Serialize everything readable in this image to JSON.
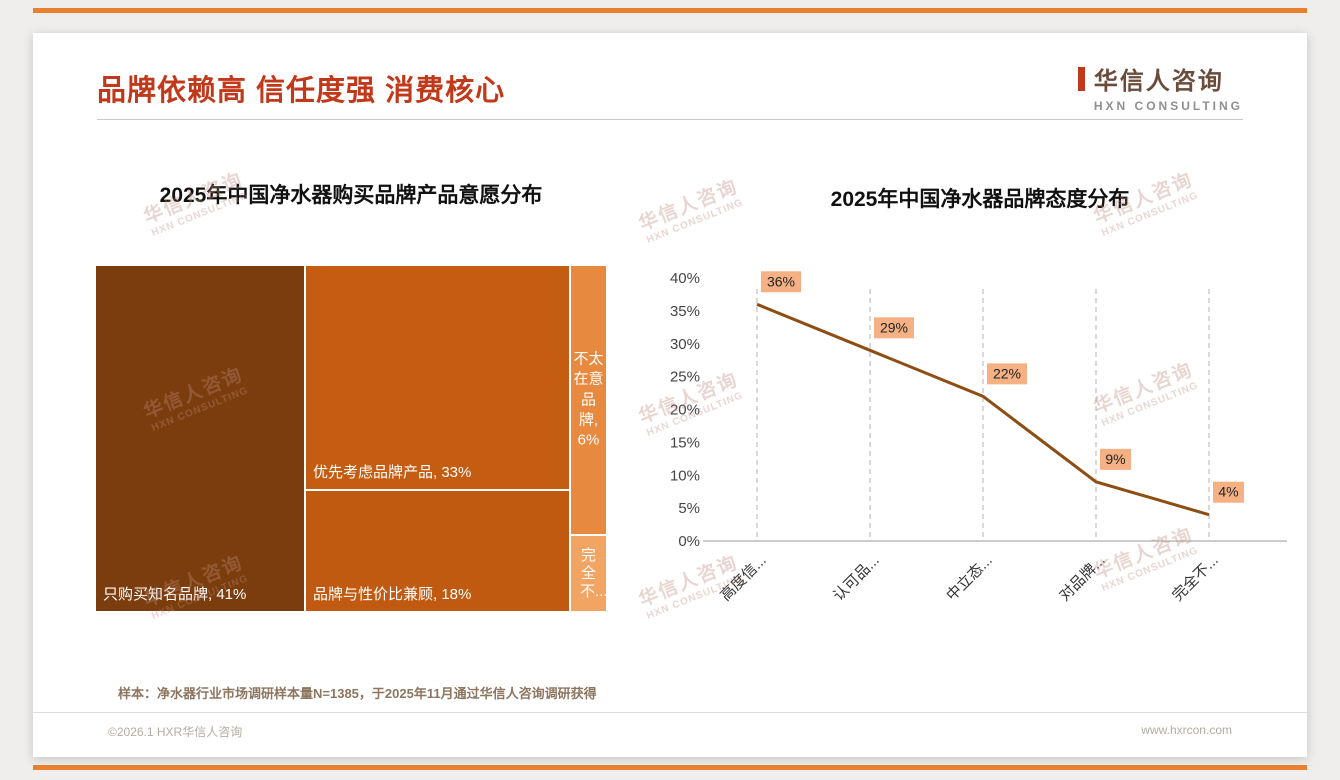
{
  "header": {
    "title": "品牌依赖高 信任度强 消费核心",
    "logo_name": "华信人咨询",
    "logo_subtitle": "HXN CONSULTING"
  },
  "watermark_text": "华信人咨询",
  "watermark_subtext": "HXN CONSULTING",
  "footnote": "样本：净水器行业市场调研样本量N=1385，于2025年11月通过华信人咨询调研获得",
  "footer": {
    "left": "©2026.1 HXR华信人咨询",
    "right": "www.hxrcon.com"
  },
  "chart_data": [
    {
      "type": "treemap",
      "title": "2025年中国净水器购买品牌产品意愿分布",
      "segments": [
        {
          "label": "只购买知名品牌",
          "value": 41,
          "display": "只购买知名品牌, 41%",
          "color": "#7c3d0e"
        },
        {
          "label": "优先考虑品牌产品",
          "value": 33,
          "display": "优先考虑品牌产品, 33%",
          "color": "#c45c12"
        },
        {
          "label": "品牌与性价比兼顾",
          "value": 18,
          "display": "品牌与性价比兼顾, 18%",
          "color": "#c05a10"
        },
        {
          "label": "不太在意品牌",
          "value": 6,
          "display": "不太在意品牌, 6%",
          "color": "#e78a3f"
        },
        {
          "label": "完全不...",
          "value": null,
          "display": "完全不...",
          "color": "#f2a463"
        }
      ]
    },
    {
      "type": "line",
      "title": "2025年中国净水器品牌态度分布",
      "categories": [
        "高度信...",
        "认可品...",
        "中立态...",
        "对品牌...",
        "完全不..."
      ],
      "values": [
        36,
        29,
        22,
        9,
        4
      ],
      "point_labels": [
        "36%",
        "29%",
        "22%",
        "9%",
        "4%"
      ],
      "ylim": [
        0,
        40
      ],
      "ytick_step": 5,
      "ytick_labels": [
        "0%",
        "5%",
        "10%",
        "15%",
        "20%",
        "25%",
        "30%",
        "35%",
        "40%"
      ],
      "grid": "dashed-vertical",
      "legend": "none",
      "line_color": "#8e4e13",
      "label_bg": "#f5b183"
    }
  ]
}
